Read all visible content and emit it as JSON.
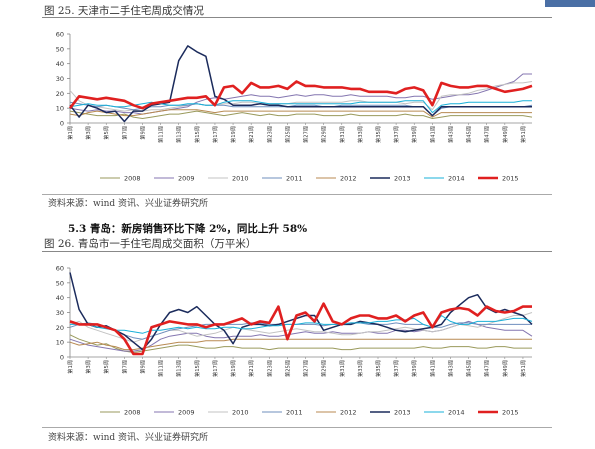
{
  "colors": {
    "2008": "#9a9a5c",
    "2009": "#8476b0",
    "2010": "#c3c3c3",
    "2011": "#6f8fbe",
    "2012": "#b88a52",
    "2013": "#1b2b5c",
    "2014": "#1ab0d8",
    "2015": "#e02020",
    "accent": "#4a6fa5"
  },
  "fig25": {
    "caption": "图 25.  天津市二手住宅周成交情况",
    "source": "资料来源：wind 资讯、兴业证券研究所"
  },
  "section": {
    "title": "5.3 青岛：新房销售环比下降 2%，同比上升 58%"
  },
  "fig26": {
    "caption": "图 26.  青岛市一手住宅周成交面积（万平米）",
    "source": "资料来源：wind 资讯、兴业证券研究所"
  },
  "chart_data": [
    {
      "type": "line",
      "ylim": [
        0,
        60
      ],
      "yticks": [
        "0",
        "10",
        "20",
        "30",
        "40",
        "50",
        "60"
      ],
      "x": [
        "第1周",
        "第2周",
        "第3周",
        "第4周",
        "第5周",
        "第6周",
        "第7周",
        "第8周",
        "第9周",
        "第10周",
        "第11周",
        "第12周",
        "第13周",
        "第14周",
        "第15周",
        "第16周",
        "第17周",
        "第18周",
        "第19周",
        "第20周",
        "第21周",
        "第22周",
        "第23周",
        "第24周",
        "第25周",
        "第26周",
        "第27周",
        "第28周",
        "第29周",
        "第30周",
        "第31周",
        "第32周",
        "第33周",
        "第34周",
        "第35周",
        "第36周",
        "第37周",
        "第38周",
        "第39周",
        "第40周",
        "第41周",
        "第42周",
        "第43周",
        "第44周",
        "第45周",
        "第46周",
        "第47周",
        "第48周",
        "第49周",
        "第50周",
        "第51周",
        "第52周"
      ],
      "xticks": [
        "第1周",
        "第3周",
        "第5周",
        "第7周",
        "第9周",
        "第11周",
        "第13周",
        "第15周",
        "第17周",
        "第19周",
        "第21周",
        "第23周",
        "第25周",
        "第27周",
        "第29周",
        "第31周",
        "第33周",
        "第35周",
        "第37周",
        "第39周",
        "第41周",
        "第43周",
        "第45周",
        "第47周",
        "第49周",
        "第51周"
      ],
      "legend_position": "bottom",
      "series": [
        {
          "name": "2008",
          "values": [
            8,
            7,
            6,
            5,
            5,
            5,
            6,
            4,
            3,
            4,
            5,
            6,
            6,
            7,
            8,
            7,
            6,
            5,
            6,
            7,
            6,
            5,
            6,
            5,
            5,
            6,
            6,
            6,
            5,
            5,
            5,
            6,
            5,
            5,
            5,
            5,
            5,
            6,
            5,
            5,
            3,
            4,
            5,
            5,
            5,
            5,
            5,
            5,
            5,
            5,
            5,
            4
          ]
        },
        {
          "name": "2009",
          "values": [
            10,
            9,
            8,
            9,
            8,
            8,
            7,
            7,
            6,
            7,
            8,
            9,
            10,
            11,
            14,
            16,
            17,
            16,
            17,
            18,
            19,
            18,
            18,
            17,
            18,
            19,
            18,
            19,
            19,
            18,
            18,
            19,
            18,
            18,
            18,
            18,
            17,
            17,
            18,
            18,
            16,
            17,
            18,
            19,
            19,
            20,
            22,
            24,
            26,
            28,
            33,
            33
          ]
        },
        {
          "name": "2010",
          "values": [
            22,
            15,
            12,
            11,
            10,
            9,
            8,
            9,
            8,
            9,
            9,
            10,
            11,
            12,
            13,
            12,
            12,
            13,
            13,
            14,
            14,
            13,
            13,
            13,
            13,
            14,
            14,
            14,
            14,
            14,
            14,
            15,
            15,
            14,
            14,
            14,
            14,
            13,
            14,
            14,
            9,
            18,
            19,
            19,
            20,
            22,
            23,
            25,
            26,
            27,
            27,
            28
          ]
        },
        {
          "name": "2011",
          "values": [
            14,
            13,
            12,
            11,
            12,
            11,
            10,
            9,
            10,
            11,
            11,
            12,
            12,
            12,
            13,
            12,
            12,
            12,
            11,
            11,
            11,
            11,
            11,
            11,
            11,
            12,
            12,
            12,
            11,
            11,
            12,
            12,
            12,
            12,
            12,
            12,
            12,
            12,
            11,
            11,
            5,
            10,
            11,
            11,
            11,
            11,
            11,
            11,
            11,
            11,
            11,
            12
          ]
        },
        {
          "name": "2012",
          "values": [
            6,
            5,
            7,
            8,
            7,
            6,
            5,
            5,
            6,
            7,
            8,
            9,
            9,
            9,
            9,
            8,
            7,
            8,
            8,
            8,
            8,
            8,
            8,
            8,
            8,
            8,
            8,
            8,
            8,
            8,
            8,
            8,
            8,
            8,
            8,
            8,
            8,
            8,
            8,
            8,
            4,
            7,
            7,
            7,
            7,
            7,
            7,
            7,
            7,
            7,
            7,
            7
          ]
        },
        {
          "name": "2013",
          "values": [
            12,
            4,
            12,
            10,
            7,
            8,
            1,
            8,
            8,
            12,
            13,
            14,
            42,
            52,
            48,
            45,
            18,
            16,
            12,
            12,
            12,
            13,
            12,
            12,
            11,
            11,
            11,
            11,
            11,
            11,
            11,
            11,
            11,
            11,
            11,
            11,
            11,
            11,
            11,
            11,
            5,
            11,
            11,
            11,
            11,
            11,
            11,
            11,
            11,
            11,
            11,
            11
          ]
        },
        {
          "name": "2014",
          "values": [
            11,
            12,
            13,
            12,
            12,
            11,
            11,
            12,
            13,
            14,
            13,
            12,
            12,
            13,
            13,
            12,
            12,
            14,
            15,
            15,
            15,
            14,
            13,
            13,
            13,
            13,
            13,
            13,
            13,
            13,
            13,
            13,
            14,
            14,
            14,
            14,
            14,
            15,
            15,
            15,
            7,
            12,
            13,
            13,
            14,
            14,
            14,
            14,
            14,
            14,
            15,
            15
          ]
        },
        {
          "name": "2015",
          "values": [
            10,
            18,
            17,
            16,
            17,
            16,
            15,
            12,
            10,
            13,
            14,
            15,
            16,
            17,
            17,
            18,
            12,
            24,
            25,
            20,
            27,
            24,
            24,
            25,
            23,
            28,
            25,
            25,
            24,
            24,
            24,
            23,
            23,
            21,
            21,
            21,
            20,
            23,
            24,
            22,
            12,
            27,
            25,
            24,
            24,
            25,
            25,
            23,
            21,
            22,
            23,
            25
          ]
        }
      ]
    },
    {
      "type": "line",
      "ylim": [
        0,
        60
      ],
      "yticks": [
        "0",
        "10",
        "20",
        "30",
        "40",
        "50",
        "60"
      ],
      "x": [
        "第1周",
        "第2周",
        "第3周",
        "第4周",
        "第5周",
        "第6周",
        "第7周",
        "第8周",
        "第9周",
        "第10周",
        "第11周",
        "第12周",
        "第13周",
        "第14周",
        "第15周",
        "第16周",
        "第17周",
        "第18周",
        "第19周",
        "第20周",
        "第21周",
        "第22周",
        "第23周",
        "第24周",
        "第25周",
        "第26周",
        "第27周",
        "第28周",
        "第29周",
        "第30周",
        "第31周",
        "第32周",
        "第33周",
        "第34周",
        "第35周",
        "第36周",
        "第37周",
        "第38周",
        "第39周",
        "第40周",
        "第41周",
        "第42周",
        "第43周",
        "第44周",
        "第45周",
        "第46周",
        "第47周",
        "第48周",
        "第49周",
        "第50周",
        "第51周",
        "第52周"
      ],
      "xticks": [
        "第1周",
        "第3周",
        "第5周",
        "第7周",
        "第9周",
        "第11周",
        "第13周",
        "第15周",
        "第17周",
        "第19周",
        "第21周",
        "第23周",
        "第25周",
        "第27周",
        "第29周",
        "第31周",
        "第33周",
        "第35周",
        "第37周",
        "第39周",
        "第41周",
        "第43周",
        "第45周",
        "第47周",
        "第49周",
        "第51周"
      ],
      "legend_position": "bottom",
      "series": [
        {
          "name": "2008",
          "values": [
            15,
            12,
            10,
            8,
            9,
            6,
            4,
            3,
            4,
            5,
            6,
            7,
            8,
            8,
            7,
            6,
            6,
            7,
            7,
            6,
            6,
            6,
            5,
            6,
            6,
            6,
            6,
            6,
            6,
            6,
            5,
            5,
            6,
            6,
            6,
            6,
            6,
            6,
            6,
            7,
            6,
            6,
            7,
            7,
            7,
            6,
            6,
            7,
            7,
            6,
            6,
            6
          ]
        },
        {
          "name": "2009",
          "values": [
            12,
            10,
            8,
            7,
            6,
            5,
            4,
            4,
            5,
            8,
            12,
            14,
            15,
            16,
            16,
            14,
            13,
            13,
            14,
            14,
            14,
            15,
            14,
            14,
            15,
            16,
            17,
            16,
            16,
            17,
            16,
            16,
            16,
            17,
            16,
            16,
            18,
            18,
            17,
            18,
            17,
            18,
            20,
            22,
            24,
            22,
            20,
            19,
            18,
            18,
            18,
            14
          ]
        },
        {
          "name": "2010",
          "values": [
            22,
            24,
            20,
            18,
            16,
            14,
            12,
            10,
            12,
            14,
            16,
            18,
            18,
            16,
            14,
            15,
            16,
            18,
            20,
            19,
            18,
            17,
            16,
            17,
            18,
            19,
            18,
            17,
            17,
            16,
            15,
            15,
            16,
            17,
            17,
            18,
            19,
            20,
            19,
            18,
            17,
            18,
            20,
            22,
            21,
            20,
            22,
            24,
            26,
            28,
            28,
            30
          ]
        },
        {
          "name": "2011",
          "values": [
            20,
            22,
            23,
            22,
            20,
            18,
            15,
            13,
            12,
            14,
            16,
            18,
            19,
            20,
            21,
            22,
            22,
            22,
            22,
            22,
            23,
            23,
            22,
            22,
            22,
            22,
            22,
            22,
            21,
            22,
            22,
            23,
            23,
            22,
            22,
            22,
            23,
            22,
            22,
            22,
            20,
            20,
            22,
            23,
            23,
            22,
            22,
            22,
            22,
            22,
            22,
            22
          ]
        },
        {
          "name": "2012",
          "values": [
            10,
            8,
            9,
            10,
            8,
            7,
            5,
            5,
            6,
            7,
            8,
            9,
            10,
            10,
            10,
            11,
            11,
            11,
            12,
            12,
            12,
            12,
            12,
            12,
            12,
            12,
            12,
            12,
            12,
            12,
            12,
            12,
            12,
            12,
            12,
            12,
            12,
            12,
            12,
            12,
            12,
            12,
            12,
            12,
            12,
            12,
            12,
            12,
            12,
            12,
            12,
            12
          ]
        },
        {
          "name": "2013",
          "values": [
            57,
            32,
            22,
            20,
            21,
            18,
            15,
            10,
            5,
            12,
            22,
            30,
            32,
            30,
            34,
            28,
            22,
            18,
            9,
            20,
            22,
            22,
            21,
            22,
            24,
            26,
            28,
            28,
            18,
            20,
            22,
            22,
            24,
            23,
            22,
            20,
            18,
            17,
            18,
            19,
            20,
            22,
            30,
            35,
            40,
            42,
            33,
            30,
            32,
            30,
            28,
            22
          ]
        },
        {
          "name": "2014",
          "values": [
            22,
            22,
            22,
            20,
            19,
            18,
            18,
            17,
            16,
            18,
            18,
            19,
            20,
            19,
            20,
            19,
            19,
            20,
            20,
            19,
            19,
            20,
            21,
            21,
            22,
            22,
            23,
            23,
            22,
            22,
            22,
            23,
            23,
            23,
            24,
            24,
            25,
            25,
            26,
            22,
            20,
            28,
            24,
            22,
            22,
            24,
            24,
            24,
            25,
            26,
            26,
            24
          ]
        },
        {
          "name": "2015",
          "values": [
            24,
            22,
            22,
            22,
            20,
            18,
            12,
            2,
            2,
            20,
            22,
            24,
            23,
            22,
            22,
            20,
            22,
            22,
            24,
            26,
            22,
            24,
            23,
            34,
            12,
            28,
            30,
            24,
            36,
            24,
            22,
            26,
            28,
            28,
            26,
            26,
            28,
            24,
            28,
            30,
            20,
            30,
            32,
            33,
            32,
            28,
            34,
            31,
            30,
            31,
            34,
            34
          ]
        }
      ]
    }
  ]
}
